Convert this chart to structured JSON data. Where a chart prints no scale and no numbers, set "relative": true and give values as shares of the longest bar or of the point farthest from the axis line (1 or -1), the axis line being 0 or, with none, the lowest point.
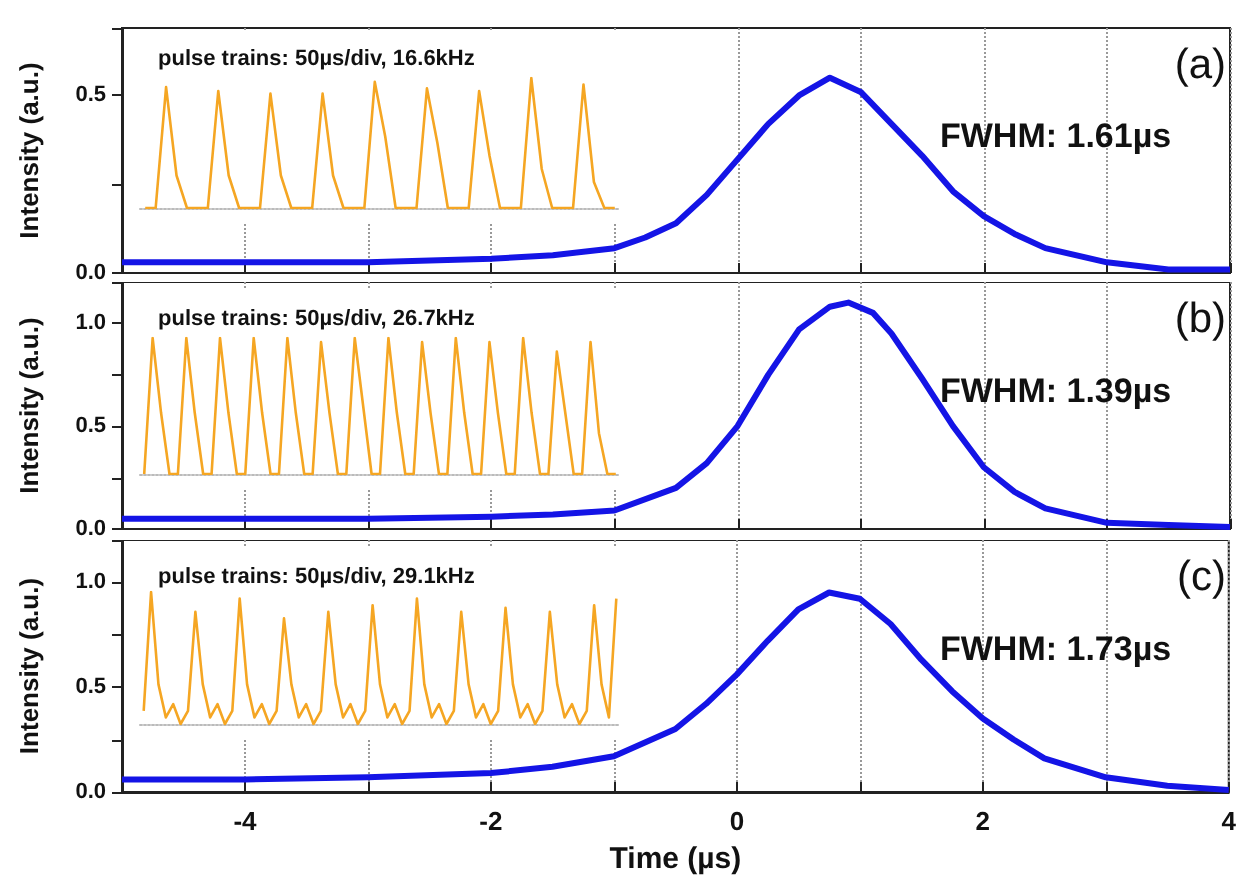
{
  "chart_data": [
    {
      "type": "line",
      "ylabel": "Intensity (a.u.)",
      "annotations": [
        "FWHM: 1.61µs",
        "(a)"
      ],
      "x": [
        -5,
        -4,
        -3,
        -2,
        -1.5,
        -1,
        -0.75,
        -0.5,
        -0.25,
        0,
        0.25,
        0.5,
        0.75,
        1,
        1.25,
        1.5,
        1.75,
        2,
        2.25,
        2.5,
        3,
        3.5,
        4
      ],
      "series": [
        {
          "color": "#1414e6",
          "values": [
            0.03,
            0.03,
            0.03,
            0.04,
            0.05,
            0.07,
            0.1,
            0.14,
            0.22,
            0.32,
            0.42,
            0.5,
            0.55,
            0.51,
            0.42,
            0.33,
            0.23,
            0.16,
            0.11,
            0.07,
            0.03,
            0.01,
            0.01
          ]
        }
      ],
      "xlim": [
        -5,
        4
      ],
      "xticks": [
        -4,
        -3,
        -2,
        -1,
        0,
        1,
        2,
        3,
        4
      ],
      "ylim": [
        0,
        0.69
      ],
      "yticks": [
        {
          "value": 0,
          "label": "0.0"
        },
        {
          "value": 0.25,
          "label": null
        },
        {
          "value": 0.5,
          "label": "0.5"
        }
      ],
      "grid": "x",
      "tick_labels": "y"
    },
    {
      "type": "line",
      "title": "pulse trains: 50µs/div, 16.6kHz",
      "relative": true,
      "categories": [
        null,
        null,
        null,
        null,
        null,
        null,
        null,
        null,
        null,
        null,
        null,
        null,
        null,
        null,
        null,
        null,
        null,
        null,
        null,
        null,
        null,
        null,
        null,
        null,
        null,
        null,
        null,
        null,
        null,
        null,
        null,
        null,
        null,
        null,
        null,
        null,
        null,
        null,
        null,
        null,
        null,
        null,
        null,
        null,
        null,
        null
      ],
      "series": [
        {
          "color": "#f5a623",
          "values": [
            0,
            0,
            0.93,
            0.25,
            0,
            0,
            0,
            0.9,
            0.25,
            0,
            0,
            0,
            0.88,
            0.25,
            0,
            0,
            0,
            0.88,
            0.25,
            0,
            0,
            0,
            0.97,
            0.55,
            0,
            0,
            0,
            0.92,
            0.5,
            0,
            0,
            0,
            0.9,
            0.4,
            0,
            0,
            0,
            1,
            0.3,
            0,
            0,
            0,
            0.95,
            0.2,
            0,
            0
          ]
        }
      ]
    },
    {
      "type": "line",
      "ylabel": "Intensity (a.u.)",
      "annotations": [
        "FWHM: 1.39µs",
        "(b)"
      ],
      "x": [
        -5,
        -4,
        -3,
        -2,
        -1.5,
        -1,
        -0.5,
        -0.25,
        0,
        0.25,
        0.5,
        0.75,
        0.9,
        1.1,
        1.25,
        1.5,
        1.75,
        2,
        2.25,
        2.5,
        3,
        3.5,
        4
      ],
      "series": [
        {
          "color": "#1414e6",
          "values": [
            0.05,
            0.05,
            0.05,
            0.06,
            0.07,
            0.09,
            0.2,
            0.32,
            0.5,
            0.75,
            0.97,
            1.08,
            1.1,
            1.05,
            0.95,
            0.73,
            0.5,
            0.3,
            0.18,
            0.1,
            0.03,
            0.02,
            0.01
          ]
        }
      ],
      "xlim": [
        -5,
        4
      ],
      "xticks": [
        -4,
        -3,
        -2,
        -1,
        0,
        1,
        2,
        3,
        4
      ],
      "ylim": [
        0,
        1.2
      ],
      "yticks": [
        {
          "value": 0,
          "label": "0.0"
        },
        {
          "value": 0.25,
          "label": null
        },
        {
          "value": 0.5,
          "label": "0.5"
        },
        {
          "value": 0.75,
          "label": null
        },
        {
          "value": 1,
          "label": "1.0"
        }
      ],
      "grid": "x",
      "tick_labels": "y"
    },
    {
      "type": "line",
      "title": "pulse trains: 50µs/div, 26.7kHz",
      "relative": true,
      "categories": [
        null,
        null,
        null,
        null,
        null,
        null,
        null,
        null,
        null,
        null,
        null,
        null,
        null,
        null,
        null,
        null,
        null,
        null,
        null,
        null,
        null,
        null,
        null,
        null,
        null,
        null,
        null,
        null,
        null,
        null,
        null,
        null,
        null,
        null,
        null,
        null,
        null,
        null,
        null,
        null,
        null,
        null,
        null,
        null,
        null,
        null,
        null,
        null,
        null,
        null,
        null,
        null,
        null,
        null,
        null,
        null,
        null
      ],
      "series": [
        {
          "color": "#f5a623",
          "values": [
            0,
            1,
            0.45,
            0,
            0,
            1,
            0.45,
            0,
            0,
            1,
            0.45,
            0,
            0,
            1,
            0.45,
            0,
            0,
            1,
            0.45,
            0,
            0,
            0.97,
            0.45,
            0,
            0,
            1,
            0.5,
            0,
            0,
            1,
            0.45,
            0,
            0,
            0.97,
            0.45,
            0,
            0,
            1,
            0.45,
            0,
            0,
            0.97,
            0.45,
            0,
            0,
            1,
            0.45,
            0,
            0,
            0.9,
            0.45,
            0,
            0,
            0.97,
            0.3,
            0,
            0
          ]
        }
      ]
    },
    {
      "type": "line",
      "ylabel": "Intensity (a.u.)",
      "xlabel": "Time (µs)",
      "annotations": [
        "FWHM: 1.73µs",
        "(c)"
      ],
      "x": [
        -5,
        -4,
        -3,
        -2,
        -1.5,
        -1,
        -0.5,
        -0.25,
        0,
        0.25,
        0.5,
        0.75,
        1,
        1.25,
        1.5,
        1.75,
        2,
        2.25,
        2.5,
        3,
        3.5,
        4
      ],
      "series": [
        {
          "color": "#1414e6",
          "values": [
            0.06,
            0.06,
            0.07,
            0.09,
            0.12,
            0.17,
            0.3,
            0.42,
            0.56,
            0.72,
            0.87,
            0.95,
            0.92,
            0.8,
            0.63,
            0.48,
            0.35,
            0.25,
            0.16,
            0.07,
            0.03,
            0.01
          ]
        }
      ],
      "xlim": [
        -5,
        4
      ],
      "xticks": [
        {
          "value": -4,
          "label": "-4"
        },
        {
          "value": -3,
          "label": null
        },
        {
          "value": -2,
          "label": "-2"
        },
        {
          "value": -1,
          "label": null
        },
        {
          "value": 0,
          "label": "0"
        },
        {
          "value": 1,
          "label": null
        },
        {
          "value": 2,
          "label": "2"
        },
        {
          "value": 3,
          "label": null
        },
        {
          "value": 4,
          "label": "4"
        }
      ],
      "ylim": [
        0,
        1.2
      ],
      "yticks": [
        {
          "value": 0,
          "label": "0.0"
        },
        {
          "value": 0.25,
          "label": null
        },
        {
          "value": 0.5,
          "label": "0.5"
        },
        {
          "value": 0.75,
          "label": null
        },
        {
          "value": 1,
          "label": "1.0"
        }
      ],
      "grid": "x"
    },
    {
      "type": "line",
      "title": "pulse trains: 50µs/div, 29.1kHz",
      "relative": true,
      "categories": [
        null,
        null,
        null,
        null,
        null,
        null,
        null,
        null,
        null,
        null,
        null,
        null,
        null,
        null,
        null,
        null,
        null,
        null,
        null,
        null,
        null,
        null,
        null,
        null,
        null,
        null,
        null,
        null,
        null,
        null,
        null,
        null,
        null,
        null,
        null,
        null,
        null,
        null,
        null,
        null,
        null,
        null,
        null,
        null,
        null,
        null,
        null,
        null,
        null,
        null,
        null,
        null,
        null,
        null,
        null,
        null,
        null,
        null,
        null,
        null,
        null,
        null,
        null,
        null,
        null
      ],
      "series": [
        {
          "color": "#f5a623",
          "values": [
            0.1,
            1,
            0.3,
            0.05,
            0.15,
            0,
            0.1,
            0.85,
            0.3,
            0.05,
            0.15,
            0,
            0.1,
            0.95,
            0.3,
            0.05,
            0.15,
            0,
            0.1,
            0.8,
            0.3,
            0.05,
            0.15,
            0,
            0.1,
            0.85,
            0.3,
            0.05,
            0.15,
            0,
            0.1,
            0.9,
            0.3,
            0.05,
            0.15,
            0,
            0.1,
            0.95,
            0.3,
            0.05,
            0.15,
            0,
            0.1,
            0.85,
            0.3,
            0.05,
            0.15,
            0,
            0.1,
            0.88,
            0.3,
            0.05,
            0.15,
            0,
            0.1,
            0.85,
            0.3,
            0.05,
            0.15,
            0,
            0.1,
            0.9,
            0.3,
            0.05,
            0.95
          ]
        }
      ]
    }
  ]
}
